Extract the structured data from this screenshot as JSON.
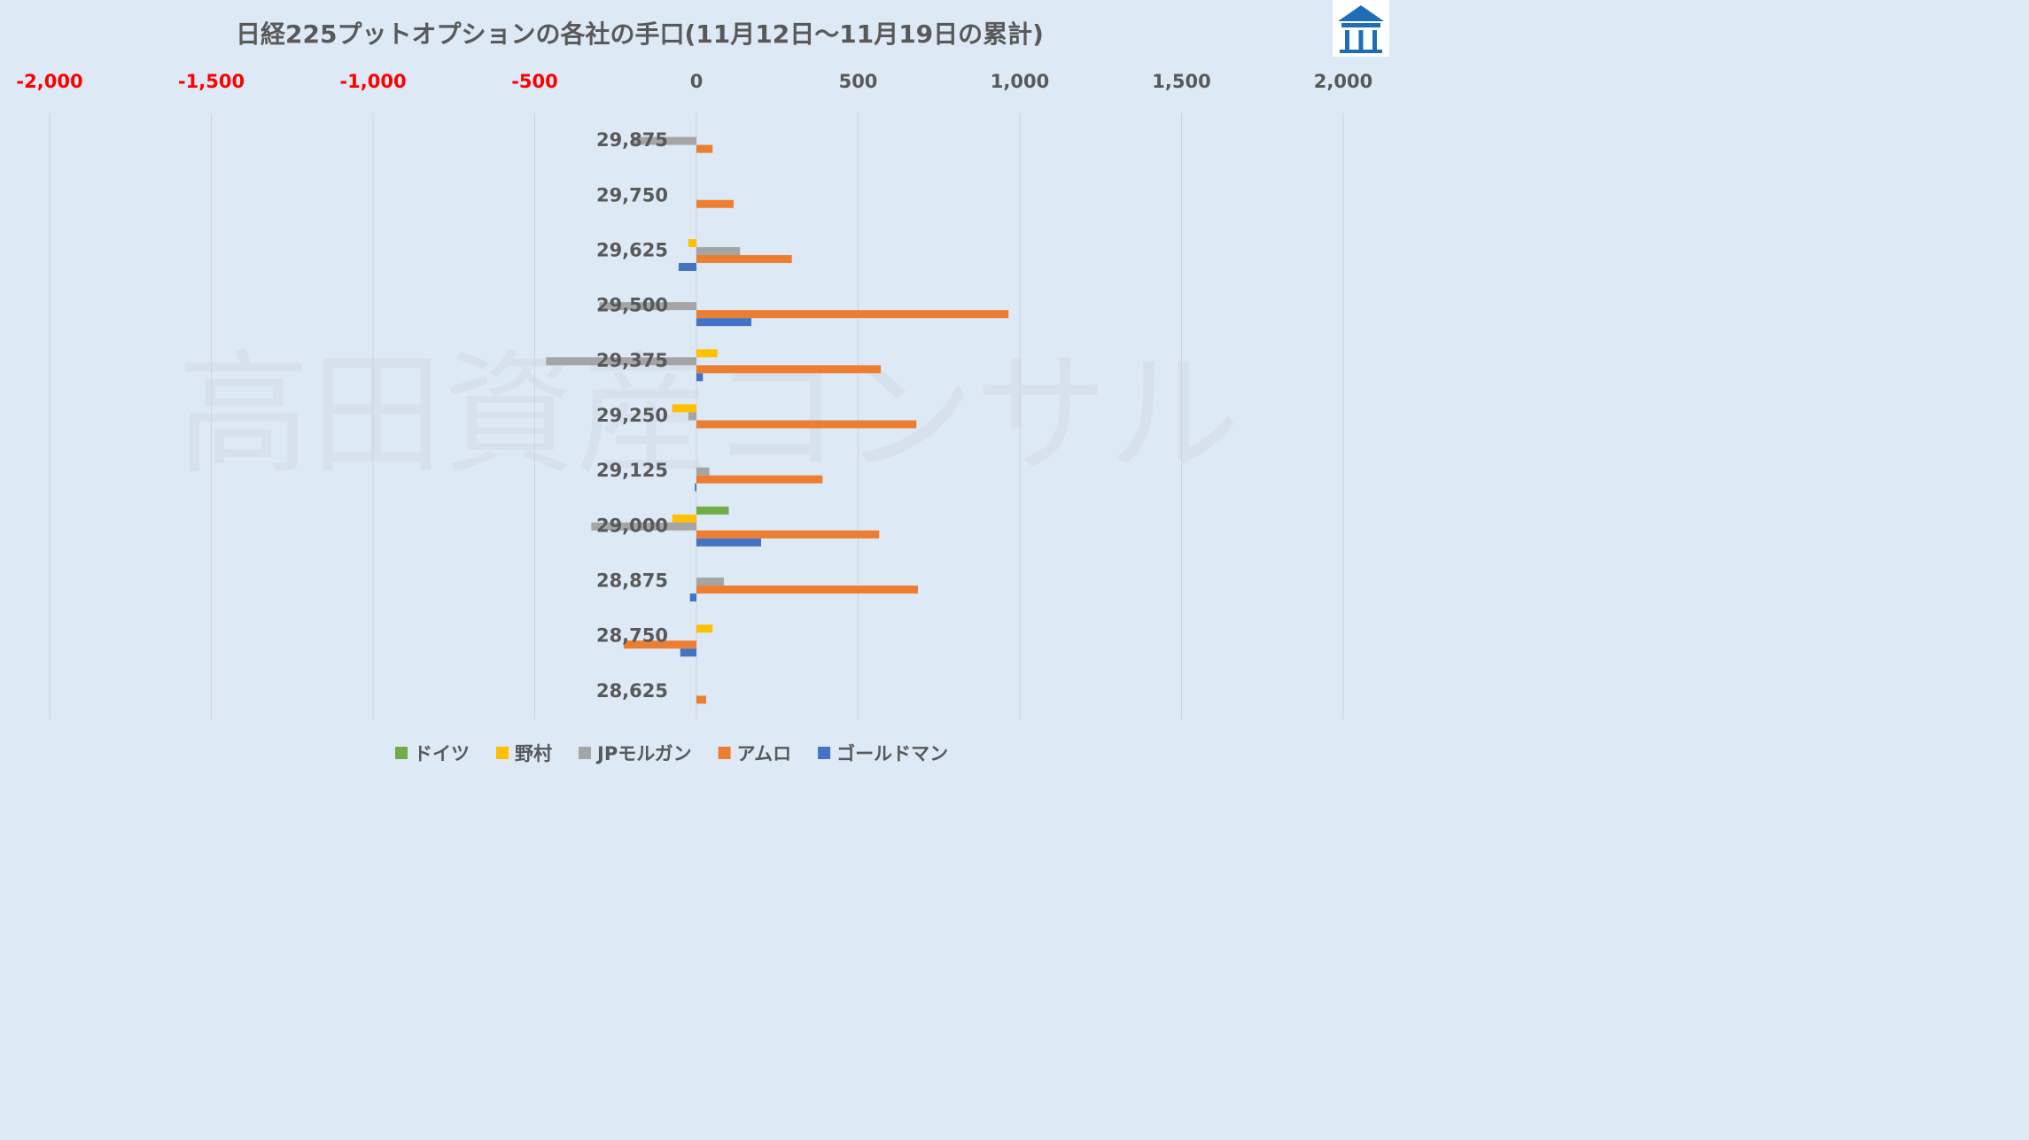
{
  "chart_data": {
    "type": "bar",
    "orientation": "horizontal",
    "title": "日経225プットオプションの各社の手口(11月12日～11月19日の累計)",
    "xlabel": "",
    "ylabel": "",
    "xlim": [
      -2000,
      2000
    ],
    "x_ticks": [
      -2000,
      -1500,
      -1000,
      -500,
      0,
      500,
      1000,
      1500,
      2000
    ],
    "x_tick_labels": [
      "-2,000",
      "-1,500",
      "-1,000",
      "-500",
      "0",
      "500",
      "1,000",
      "1,500",
      "2,000"
    ],
    "negative_tick_color": "#ff0000",
    "grid": true,
    "legend_position": "bottom",
    "categories": [
      "29,875",
      "29,750",
      "29,625",
      "29,500",
      "29,375",
      "29,250",
      "29,125",
      "29,000",
      "28,875",
      "28,750",
      "28,625"
    ],
    "series": [
      {
        "name": "ドイツ",
        "color": "#70ad47",
        "values": [
          0,
          0,
          0,
          0,
          0,
          0,
          0,
          100,
          0,
          0,
          0
        ]
      },
      {
        "name": "野村",
        "color": "#ffc000",
        "values": [
          0,
          0,
          -25,
          0,
          65,
          -75,
          0,
          -75,
          0,
          50,
          0
        ]
      },
      {
        "name": "JPモルガン",
        "color": "#a5a5a5",
        "values": [
          -200,
          0,
          135,
          -300,
          -465,
          -25,
          40,
          -325,
          85,
          0,
          0
        ]
      },
      {
        "name": "アムロ",
        "color": "#ed7d31",
        "values": [
          50,
          115,
          295,
          965,
          570,
          680,
          390,
          565,
          685,
          -225,
          30
        ]
      },
      {
        "name": "ゴールドマン",
        "color": "#4472c4",
        "values": [
          0,
          0,
          -55,
          170,
          20,
          0,
          -5,
          200,
          -20,
          -50,
          0
        ]
      }
    ]
  },
  "watermark": "高田資産コンサル",
  "logo": {
    "icon": "house-logo-icon",
    "color": "#1f6db5"
  }
}
